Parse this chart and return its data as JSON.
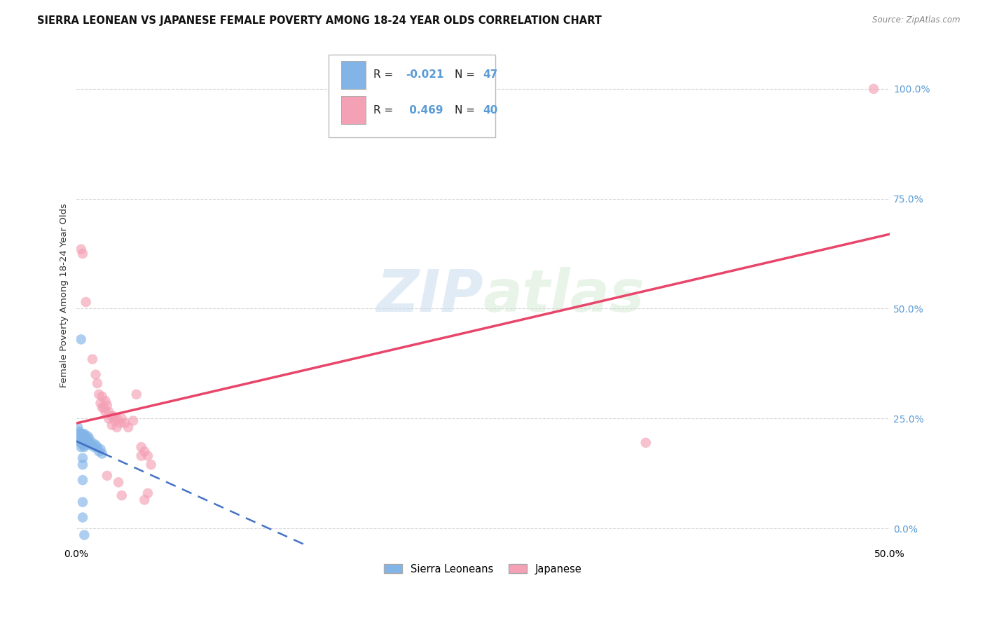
{
  "title": "SIERRA LEONEAN VS JAPANESE FEMALE POVERTY AMONG 18-24 YEAR OLDS CORRELATION CHART",
  "source": "Source: ZipAtlas.com",
  "ylabel": "Female Poverty Among 18-24 Year Olds",
  "xlim": [
    0.0,
    0.5
  ],
  "ylim": [
    -0.04,
    1.1
  ],
  "x_ticks": [
    0.0,
    0.1,
    0.2,
    0.3,
    0.4,
    0.5
  ],
  "x_tick_labels": [
    "0.0%",
    "",
    "",
    "",
    "",
    "50.0%"
  ],
  "y_ticks": [
    0.0,
    0.25,
    0.5,
    0.75,
    1.0
  ],
  "y_tick_labels_right": [
    "0.0%",
    "25.0%",
    "50.0%",
    "75.0%",
    "100.0%"
  ],
  "watermark_zip": "ZIP",
  "watermark_atlas": "atlas",
  "sl_color": "#82B4E8",
  "jp_color": "#F4A0B5",
  "sl_line_color": "#4472C4",
  "jp_line_color": "#E8456A",
  "sl_R": -0.021,
  "sl_N": 47,
  "jp_R": 0.469,
  "jp_N": 40,
  "sl_scatter": [
    [
      0.001,
      0.23
    ],
    [
      0.001,
      0.21
    ],
    [
      0.002,
      0.22
    ],
    [
      0.002,
      0.2
    ],
    [
      0.002,
      0.215
    ],
    [
      0.003,
      0.205
    ],
    [
      0.003,
      0.195
    ],
    [
      0.003,
      0.21
    ],
    [
      0.003,
      0.2
    ],
    [
      0.003,
      0.185
    ],
    [
      0.003,
      0.215
    ],
    [
      0.003,
      0.195
    ],
    [
      0.004,
      0.205
    ],
    [
      0.004,
      0.195
    ],
    [
      0.004,
      0.21
    ],
    [
      0.004,
      0.2
    ],
    [
      0.004,
      0.215
    ],
    [
      0.004,
      0.19
    ],
    [
      0.005,
      0.205
    ],
    [
      0.005,
      0.195
    ],
    [
      0.005,
      0.21
    ],
    [
      0.005,
      0.2
    ],
    [
      0.005,
      0.215
    ],
    [
      0.005,
      0.185
    ],
    [
      0.006,
      0.2
    ],
    [
      0.006,
      0.195
    ],
    [
      0.006,
      0.205
    ],
    [
      0.006,
      0.19
    ],
    [
      0.007,
      0.2
    ],
    [
      0.007,
      0.21
    ],
    [
      0.008,
      0.195
    ],
    [
      0.008,
      0.205
    ],
    [
      0.009,
      0.19
    ],
    [
      0.01,
      0.195
    ],
    [
      0.011,
      0.185
    ],
    [
      0.012,
      0.19
    ],
    [
      0.013,
      0.185
    ],
    [
      0.014,
      0.175
    ],
    [
      0.015,
      0.18
    ],
    [
      0.016,
      0.17
    ],
    [
      0.003,
      0.43
    ],
    [
      0.004,
      0.16
    ],
    [
      0.004,
      0.145
    ],
    [
      0.004,
      0.11
    ],
    [
      0.004,
      0.06
    ],
    [
      0.004,
      0.025
    ],
    [
      0.005,
      -0.015
    ]
  ],
  "jp_scatter": [
    [
      0.003,
      0.635
    ],
    [
      0.004,
      0.625
    ],
    [
      0.006,
      0.515
    ],
    [
      0.01,
      0.385
    ],
    [
      0.012,
      0.35
    ],
    [
      0.013,
      0.33
    ],
    [
      0.014,
      0.305
    ],
    [
      0.015,
      0.285
    ],
    [
      0.016,
      0.3
    ],
    [
      0.016,
      0.275
    ],
    [
      0.017,
      0.275
    ],
    [
      0.018,
      0.29
    ],
    [
      0.018,
      0.265
    ],
    [
      0.019,
      0.28
    ],
    [
      0.02,
      0.265
    ],
    [
      0.02,
      0.25
    ],
    [
      0.022,
      0.255
    ],
    [
      0.022,
      0.235
    ],
    [
      0.023,
      0.255
    ],
    [
      0.024,
      0.245
    ],
    [
      0.025,
      0.25
    ],
    [
      0.025,
      0.23
    ],
    [
      0.027,
      0.24
    ],
    [
      0.028,
      0.25
    ],
    [
      0.03,
      0.24
    ],
    [
      0.032,
      0.23
    ],
    [
      0.035,
      0.245
    ],
    [
      0.037,
      0.305
    ],
    [
      0.04,
      0.185
    ],
    [
      0.04,
      0.165
    ],
    [
      0.042,
      0.175
    ],
    [
      0.044,
      0.165
    ],
    [
      0.046,
      0.145
    ],
    [
      0.019,
      0.12
    ],
    [
      0.026,
      0.105
    ],
    [
      0.028,
      0.075
    ],
    [
      0.042,
      0.065
    ],
    [
      0.044,
      0.08
    ],
    [
      0.35,
      0.195
    ],
    [
      0.49,
      1.0
    ]
  ],
  "background_color": "#ffffff",
  "grid_color": "#cccccc",
  "right_tick_color": "#5B9BD5"
}
